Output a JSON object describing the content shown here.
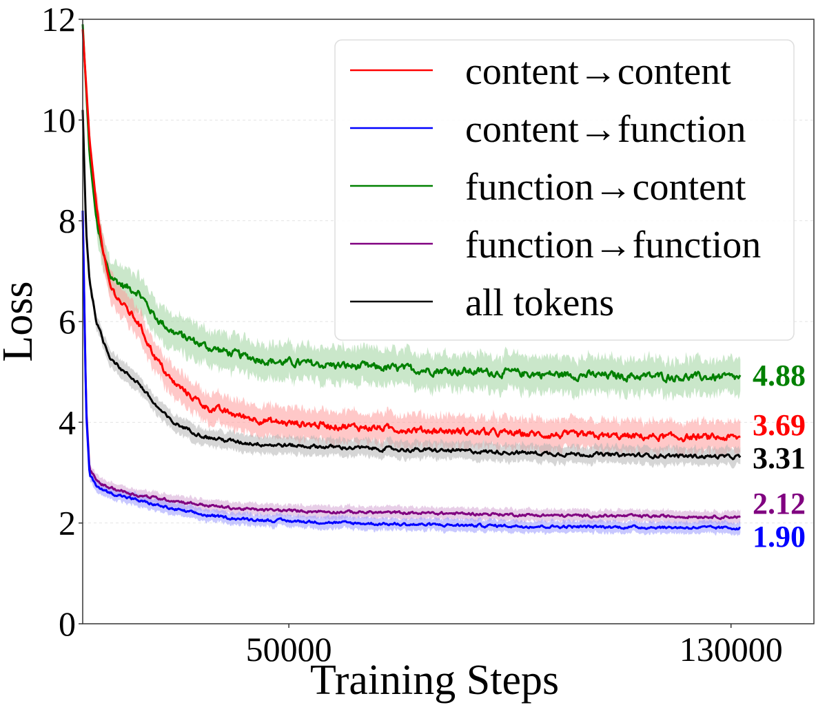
{
  "chart_data": {
    "type": "line",
    "title": "",
    "xlabel": "Training Steps",
    "ylabel": "Loss",
    "xlim": [
      12700,
      145000
    ],
    "ylim": [
      0,
      12
    ],
    "xticks": [
      50000,
      130000
    ],
    "xtick_labels": [
      "50000",
      "130000"
    ],
    "yticks": [
      0,
      2,
      4,
      6,
      8,
      10,
      12
    ],
    "ytick_labels": [
      "0",
      "2",
      "4",
      "6",
      "8",
      "10",
      "12"
    ],
    "grid": "horizontal-dashed",
    "legend_position": "top-right",
    "shaded_band": "variability band around each series",
    "series": [
      {
        "name": "content→content",
        "color": "#ff0000",
        "band_color": "#ff9a9a",
        "final_label": "3.69",
        "band_halfwidth": 0.3,
        "x": [
          12700,
          13946,
          15192,
          16438,
          17684,
          20176,
          22669,
          25784,
          28899,
          35130,
          41360,
          47591,
          60052,
          72513,
          84975,
          97436,
          109897,
          122359,
          131700
        ],
        "y": [
          11.8,
          9.6,
          8.3,
          7.3,
          6.7,
          6.3,
          6.0,
          5.3,
          4.8,
          4.3,
          4.12,
          4.0,
          3.92,
          3.85,
          3.8,
          3.75,
          3.72,
          3.7,
          3.69
        ]
      },
      {
        "name": "content→function",
        "color": "#0000ff",
        "band_color": "#9a9aff",
        "final_label": "1.90",
        "band_halfwidth": 0.12,
        "x": [
          12700,
          13323,
          13946,
          15192,
          16438,
          17684,
          22669,
          28899,
          35130,
          41360,
          47591,
          60052,
          72513,
          84975,
          97436,
          109897,
          122359,
          131700
        ],
        "y": [
          8.2,
          4.2,
          2.95,
          2.75,
          2.65,
          2.6,
          2.45,
          2.28,
          2.15,
          2.08,
          2.05,
          2.0,
          1.97,
          1.95,
          1.93,
          1.92,
          1.91,
          1.9
        ]
      },
      {
        "name": "function→content",
        "color": "#008000",
        "band_color": "#9fd49f",
        "final_label": "4.88",
        "band_halfwidth": 0.35,
        "x": [
          12700,
          13946,
          15192,
          16438,
          17684,
          20176,
          22669,
          25784,
          28899,
          35130,
          41360,
          47591,
          60052,
          72513,
          84975,
          97436,
          109897,
          122359,
          131700
        ],
        "y": [
          11.9,
          9.3,
          8.0,
          7.3,
          6.9,
          6.7,
          6.6,
          6.1,
          5.8,
          5.5,
          5.32,
          5.2,
          5.12,
          5.05,
          5.0,
          4.95,
          4.92,
          4.9,
          4.88
        ]
      },
      {
        "name": "function→function",
        "color": "#800080",
        "band_color": "#d3a6d3",
        "final_label": "2.12",
        "band_halfwidth": 0.12,
        "x": [
          12700,
          13323,
          13946,
          15192,
          16438,
          17684,
          22669,
          28899,
          35130,
          41360,
          47591,
          60052,
          72513,
          84975,
          97436,
          109897,
          122359,
          131700
        ],
        "y": [
          8.2,
          4.3,
          3.05,
          2.85,
          2.75,
          2.7,
          2.55,
          2.45,
          2.35,
          2.28,
          2.25,
          2.22,
          2.2,
          2.18,
          2.15,
          2.14,
          2.13,
          2.12
        ]
      },
      {
        "name": "all tokens",
        "color": "#000000",
        "band_color": "#b5b5b5",
        "final_label": "3.31",
        "band_halfwidth": 0.17,
        "x": [
          12700,
          13323,
          13946,
          15192,
          16438,
          17684,
          20176,
          22669,
          25784,
          28899,
          35130,
          41360,
          47591,
          60052,
          72513,
          84975,
          97436,
          109897,
          122359,
          131700
        ],
        "y": [
          10.2,
          7.8,
          6.8,
          6.0,
          5.6,
          5.3,
          5.0,
          4.8,
          4.35,
          4.0,
          3.7,
          3.6,
          3.55,
          3.5,
          3.45,
          3.42,
          3.38,
          3.35,
          3.33,
          3.31
        ]
      }
    ]
  },
  "legend": {
    "items": [
      {
        "label": "content→content",
        "color": "#ff0000"
      },
      {
        "label": "content→function",
        "color": "#0000ff"
      },
      {
        "label": "function→content",
        "color": "#008000"
      },
      {
        "label": "function→function",
        "color": "#800080"
      },
      {
        "label": "all tokens",
        "color": "#000000"
      }
    ]
  },
  "end_labels": [
    {
      "text": "4.88",
      "color": "#008000",
      "value": 4.88
    },
    {
      "text": "3.69",
      "color": "#ff0000",
      "value": 3.69
    },
    {
      "text": "3.31",
      "color": "#000000",
      "value": 3.31
    },
    {
      "text": "2.12",
      "color": "#800080",
      "value": 2.12
    },
    {
      "text": "1.90",
      "color": "#0000ff",
      "value": 1.9
    }
  ]
}
